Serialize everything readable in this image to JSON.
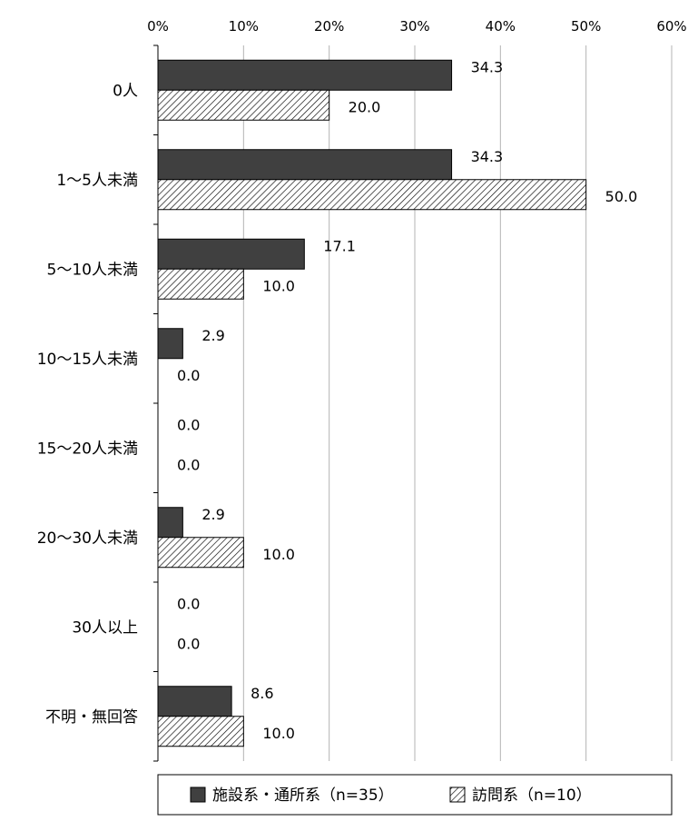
{
  "chart_data": {
    "type": "bar",
    "orientation": "horizontal",
    "categories": [
      "0人",
      "1～5人未満",
      "5～10人未満",
      "10～15人未満",
      "15～20人未満",
      "20～30人未満",
      "30人以上",
      "不明・無回答"
    ],
    "series": [
      {
        "name": "施設系・通所系（n=35）",
        "values": [
          34.3,
          34.3,
          17.1,
          2.9,
          0.0,
          2.9,
          0.0,
          8.6
        ],
        "labels": [
          "34.3",
          "34.3",
          "17.1",
          "2.9",
          "0.0",
          "2.9",
          "0.0",
          "8.6"
        ],
        "color": "#404040",
        "pattern": "solid"
      },
      {
        "name": "訪問系（n=10）",
        "values": [
          20.0,
          50.0,
          10.0,
          0.0,
          0.0,
          10.0,
          0.0,
          10.0
        ],
        "labels": [
          "20.0",
          "50.0",
          "10.0",
          "0.0",
          "0.0",
          "10.0",
          "0.0",
          "10.0"
        ],
        "color": "#ffffff",
        "pattern": "diagonal-hatch"
      }
    ],
    "x_ticks": [
      "0%",
      "10%",
      "20%",
      "30%",
      "40%",
      "50%",
      "60%"
    ],
    "xlim": [
      0,
      60
    ],
    "x_axis_position": "top",
    "grid": true,
    "legend_position": "bottom",
    "title": "",
    "xlabel": "",
    "ylabel": ""
  }
}
